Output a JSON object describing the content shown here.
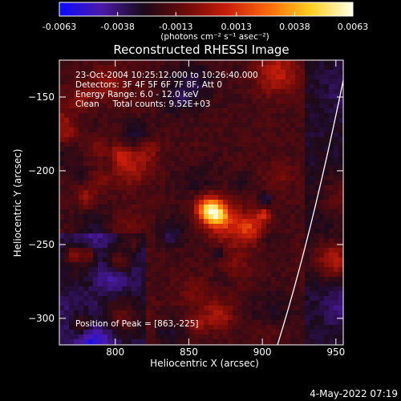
{
  "colors": {
    "background": "#000000",
    "foreground": "#ffffff",
    "colormap": [
      "#0a0aff",
      "#4b1aa8",
      "#1a0a1a",
      "#6a0a0a",
      "#c81e0a",
      "#ff6a0a",
      "#ffd020",
      "#ffffe8"
    ]
  },
  "colorbar": {
    "ticks": [
      "-0.0063",
      "-0.0038",
      "-0.0013",
      "0.0013",
      "0.0038",
      "0.0063"
    ],
    "tick_values": [
      -0.0063,
      -0.0038,
      -0.0013,
      0.0013,
      0.0038,
      0.0063
    ],
    "range": [
      -0.0063,
      0.0063
    ],
    "unit_label": "(photons cm⁻² s⁻¹ asec⁻²)"
  },
  "chart_data": {
    "type": "heatmap",
    "title": "Reconstructed RHESSI Image",
    "xlabel": "Heliocentric X (arcsec)",
    "ylabel": "Heliocentric Y (arcsec)",
    "xlim": [
      762,
      955
    ],
    "ylim": [
      -318,
      -125
    ],
    "x_ticks": [
      800,
      850,
      900,
      950
    ],
    "y_ticks": [
      -150,
      -200,
      -250,
      -300
    ],
    "peak": [
      863,
      -225
    ],
    "annotations": [
      "23-Oct-2004 10:25:12.000 to 10:26:40.000",
      "Detectors: 3F 4F 5F 6F 7F 8F, Att 0",
      "Energy Range: 6.0 - 12.0 keV",
      "Clean     Total counts: 9.52E+03"
    ],
    "peak_label": "Position of Peak = [863,-225]"
  },
  "footer": {
    "date": "4-May-2022 07:19"
  }
}
